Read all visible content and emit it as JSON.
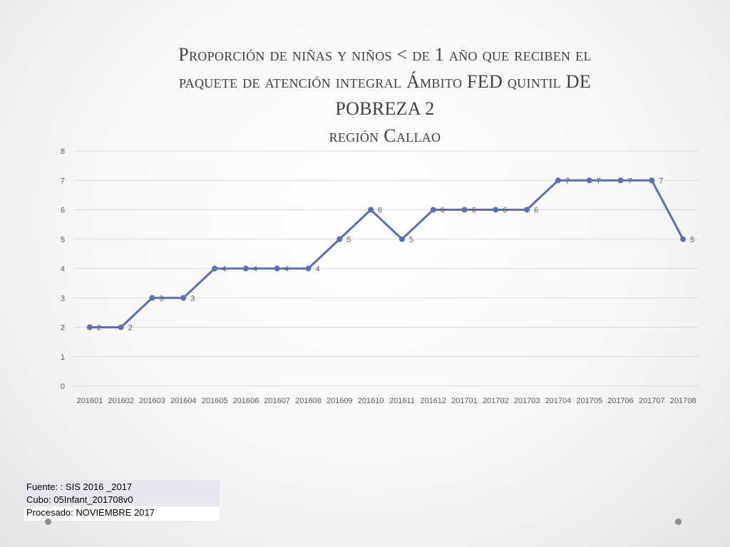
{
  "title": {
    "line1": "Proporción de niñas y niños < de 1 año que reciben el",
    "line2": "paquete de atención integral Ámbito FED quintil DE",
    "line3": "POBREZA  2",
    "line4": "región Callao"
  },
  "source": {
    "line1": "Fuente: : SIS 2016 _2017",
    "line2": "Cubo:  05Infant_201708v0",
    "line3": "Procesado: NOVIEMBRE 2017"
  },
  "colors": {
    "series": "#5b70b0",
    "grid": "#d9d9d9"
  },
  "chart_data": {
    "type": "line",
    "categories": [
      "201601",
      "201602",
      "201603",
      "201604",
      "201605",
      "201606",
      "201607",
      "201608",
      "201609",
      "201610",
      "201611",
      "201612",
      "201701",
      "201702",
      "201703",
      "201704",
      "201705",
      "201706",
      "201707",
      "201708"
    ],
    "values": [
      2,
      2,
      3,
      3,
      4,
      4,
      4,
      4,
      5,
      6,
      5,
      6,
      6,
      6,
      6,
      7,
      7,
      7,
      7,
      5
    ],
    "ylim": [
      0,
      8
    ],
    "yticks": [
      0,
      1,
      2,
      3,
      4,
      5,
      6,
      7,
      8
    ],
    "grid": true,
    "legend": false,
    "data_labels": true
  }
}
